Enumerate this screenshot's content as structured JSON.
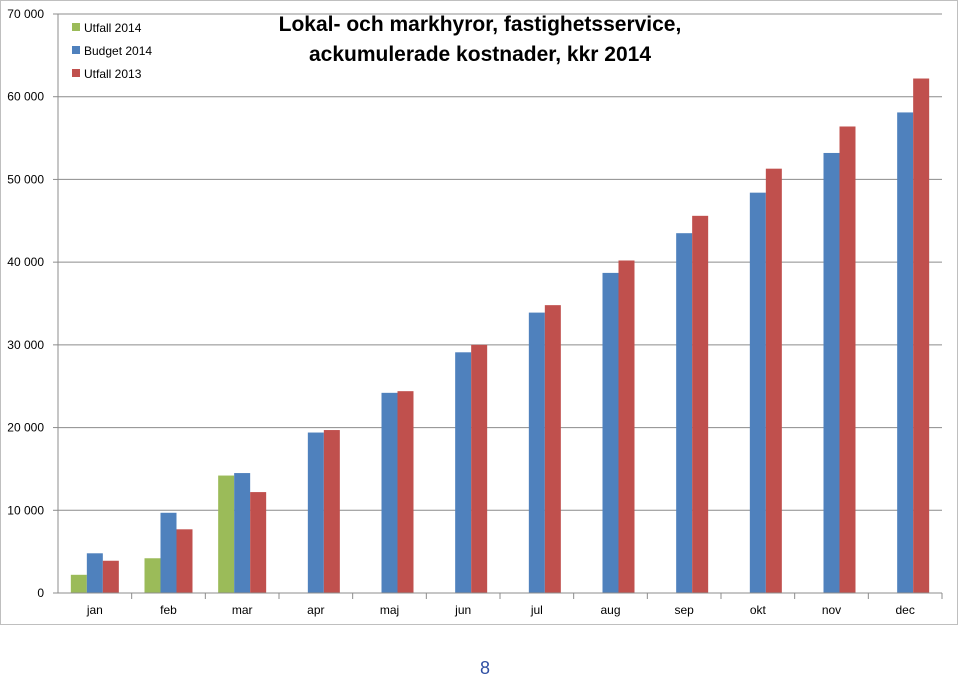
{
  "page": {
    "number": "8"
  },
  "chart_data": {
    "type": "bar",
    "title": [
      "Lokal- och markhyror, fastighetsservice,",
      "ackumulerade kostnader, kkr 2014"
    ],
    "xlabel": "",
    "ylabel": "",
    "categories": [
      "jan",
      "feb",
      "mar",
      "apr",
      "maj",
      "jun",
      "jul",
      "aug",
      "sep",
      "okt",
      "nov",
      "dec"
    ],
    "ylim": [
      0,
      70000
    ],
    "yticks": [
      0,
      10000,
      20000,
      30000,
      40000,
      50000,
      60000,
      70000
    ],
    "ytick_labels": [
      "0",
      "10 000",
      "20 000",
      "30 000",
      "40 000",
      "50 000",
      "60 000",
      "70 000"
    ],
    "grid": true,
    "legend_position": "top-left",
    "series": [
      {
        "name": "Utfall 2014",
        "color": "#9bbb59",
        "values": [
          2200,
          4200,
          14200,
          null,
          null,
          null,
          null,
          null,
          null,
          null,
          null,
          null
        ]
      },
      {
        "name": "Budget 2014",
        "color": "#4f81bd",
        "values": [
          4800,
          9700,
          14500,
          19400,
          24200,
          29100,
          33900,
          38700,
          43500,
          48400,
          53200,
          58100
        ]
      },
      {
        "name": "Utfall 2013",
        "color": "#c0504d",
        "values": [
          3900,
          7700,
          12200,
          19700,
          24400,
          30000,
          34800,
          40200,
          45600,
          51300,
          56400,
          62200
        ]
      }
    ]
  }
}
